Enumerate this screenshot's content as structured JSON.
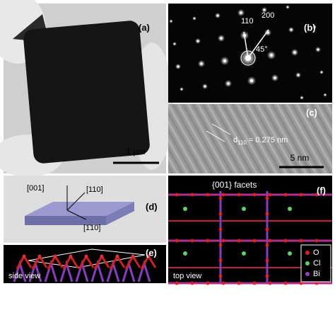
{
  "panels": {
    "a": {
      "label": "(a)",
      "scale_bar": "1 μm"
    },
    "b": {
      "label": "(b)",
      "spots": [
        "110",
        "200"
      ],
      "angle": "45°"
    },
    "c": {
      "label": "(c)",
      "spacing": {
        "symbol": "d",
        "subscript": "110",
        "text": " = 0.275 nm"
      },
      "scale_bar": "5 nm"
    },
    "d": {
      "label": "(d)",
      "axes": [
        "[001]",
        "[110]",
        "[1̄10]"
      ]
    },
    "e": {
      "label": "(e)",
      "caption": "side view"
    },
    "f": {
      "label": "(f)",
      "title": "{001} facets",
      "legend": [
        "O",
        "Cl",
        "Bi"
      ],
      "caption": "top view"
    }
  }
}
